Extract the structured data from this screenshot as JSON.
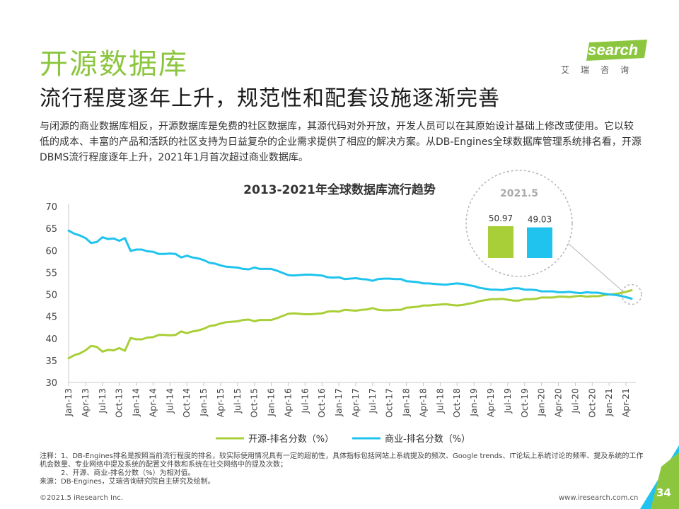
{
  "header": {
    "title": "开源数据库",
    "subtitle": "流行程度逐年上升，规范性和配套设施逐渐完善",
    "intro": "与闭源的商业数据库相反，开源数据库是免费的社区数据库，其源代码对外开放，开发人员可以在其原始设计基础上修改或使用。它以较低的成本、丰富的产品和活跃的社区支持为日益复杂的企业需求提供了相应的解决方案。从DB-Engines全球数据库管理系统排名看，开源DBMS流行程度逐年上升，2021年1月首次超过商业数据库。"
  },
  "logo": {
    "text": "iResearch",
    "subtext": "艾瑞咨询"
  },
  "colors": {
    "accent": "#8cc63f",
    "open_source": "#a9cf38",
    "commercial": "#1fc3ee"
  },
  "chart_data": {
    "type": "line",
    "title": "2013-2021年全球数据库流行趋势",
    "xlabel": "",
    "ylabel": "",
    "ylim": [
      30,
      70
    ],
    "yticks": [
      30,
      35,
      40,
      45,
      50,
      55,
      60,
      65,
      70
    ],
    "grid": false,
    "legend_position": "bottom",
    "x": [
      "Jan-13",
      "Feb-13",
      "Mar-13",
      "Apr-13",
      "May-13",
      "Jun-13",
      "Jul-13",
      "Aug-13",
      "Sep-13",
      "Oct-13",
      "Nov-13",
      "Dec-13",
      "Jan-14",
      "Feb-14",
      "Mar-14",
      "Apr-14",
      "May-14",
      "Jun-14",
      "Jul-14",
      "Aug-14",
      "Sep-14",
      "Oct-14",
      "Nov-14",
      "Dec-14",
      "Jan-15",
      "Feb-15",
      "Mar-15",
      "Apr-15",
      "May-15",
      "Jun-15",
      "Jul-15",
      "Aug-15",
      "Sep-15",
      "Oct-15",
      "Nov-15",
      "Dec-15",
      "Jan-16",
      "Feb-16",
      "Mar-16",
      "Apr-16",
      "May-16",
      "Jun-16",
      "Jul-16",
      "Aug-16",
      "Sep-16",
      "Oct-16",
      "Nov-16",
      "Dec-16",
      "Jan-17",
      "Feb-17",
      "Mar-17",
      "Apr-17",
      "May-17",
      "Jun-17",
      "Jul-17",
      "Aug-17",
      "Sep-17",
      "Oct-17",
      "Nov-17",
      "Dec-17",
      "Jan-18",
      "Feb-18",
      "Mar-18",
      "Apr-18",
      "May-18",
      "Jun-18",
      "Jul-18",
      "Aug-18",
      "Sep-18",
      "Oct-18",
      "Nov-18",
      "Dec-18",
      "Jan-19",
      "Feb-19",
      "Mar-19",
      "Apr-19",
      "May-19",
      "Jun-19",
      "Jul-19",
      "Aug-19",
      "Sep-19",
      "Oct-19",
      "Nov-19",
      "Dec-19",
      "Jan-20",
      "Feb-20",
      "Mar-20",
      "Apr-20",
      "May-20",
      "Jun-20",
      "Jul-20",
      "Aug-20",
      "Sep-20",
      "Oct-20",
      "Nov-20",
      "Dec-20",
      "Jan-21",
      "Feb-21",
      "Mar-21",
      "Apr-21",
      "May-21"
    ],
    "tick_labels": [
      "Jan-13",
      "Apr-13",
      "Jul-13",
      "Oct-13",
      "Jan-14",
      "Apr-14",
      "Jul-14",
      "Oct-14",
      "Jan-15",
      "Apr-15",
      "Jul-15",
      "Oct-15",
      "Jan-16",
      "Apr-16",
      "Jul-16",
      "Oct-16",
      "Jan-17",
      "Apr-17",
      "Jul-17",
      "Oct-17",
      "Jan-18",
      "Apr-18",
      "Jul-18",
      "Oct-18",
      "Jan-19",
      "Apr-19",
      "Jul-19",
      "Oct-19",
      "Jan-20",
      "Apr-20",
      "Jul-20",
      "Oct-20",
      "Jan-21",
      "Apr-21"
    ],
    "series": [
      {
        "name": "开源-排名分数（%）",
        "values": [
          35.5,
          36.2,
          36.6,
          37.3,
          38.3,
          38.1,
          37.0,
          37.4,
          37.3,
          37.8,
          37.2,
          40.1,
          39.8,
          39.8,
          40.2,
          40.3,
          40.8,
          40.8,
          40.7,
          40.8,
          41.6,
          41.2,
          41.6,
          41.8,
          42.2,
          42.8,
          43.0,
          43.4,
          43.7,
          43.8,
          43.9,
          44.2,
          44.3,
          43.9,
          44.2,
          44.2,
          44.2,
          44.6,
          45.1,
          45.6,
          45.7,
          45.6,
          45.5,
          45.5,
          45.6,
          45.7,
          46.1,
          46.2,
          46.1,
          46.5,
          46.4,
          46.3,
          46.5,
          46.6,
          46.9,
          46.5,
          46.4,
          46.4,
          46.5,
          46.5,
          47.0,
          47.1,
          47.2,
          47.5,
          47.5,
          47.6,
          47.7,
          47.8,
          47.6,
          47.5,
          47.6,
          47.9,
          48.1,
          48.5,
          48.7,
          48.9,
          48.9,
          49.0,
          48.8,
          48.6,
          48.6,
          48.9,
          48.9,
          49.0,
          49.3,
          49.3,
          49.3,
          49.5,
          49.5,
          49.4,
          49.6,
          49.7,
          49.5,
          49.6,
          49.6,
          49.8,
          50.0,
          50.1,
          50.3,
          50.6,
          50.97
        ]
      },
      {
        "name": "商业-排名分数（%）",
        "values": [
          64.5,
          63.8,
          63.4,
          62.8,
          61.7,
          61.9,
          63.0,
          62.6,
          62.7,
          62.2,
          62.8,
          59.9,
          60.2,
          60.2,
          59.8,
          59.7,
          59.2,
          59.2,
          59.3,
          59.2,
          58.4,
          58.8,
          58.4,
          58.2,
          57.8,
          57.2,
          57.0,
          56.6,
          56.3,
          56.2,
          56.1,
          55.8,
          55.7,
          56.1,
          55.8,
          55.8,
          55.8,
          55.4,
          54.9,
          54.4,
          54.3,
          54.4,
          54.5,
          54.5,
          54.4,
          54.3,
          53.9,
          53.8,
          53.9,
          53.5,
          53.6,
          53.7,
          53.5,
          53.4,
          53.1,
          53.5,
          53.6,
          53.6,
          53.5,
          53.5,
          53.0,
          52.9,
          52.8,
          52.5,
          52.5,
          52.4,
          52.3,
          52.2,
          52.4,
          52.5,
          52.4,
          52.1,
          51.9,
          51.5,
          51.3,
          51.1,
          51.1,
          51.0,
          51.2,
          51.4,
          51.4,
          51.1,
          51.1,
          51.0,
          50.7,
          50.7,
          50.7,
          50.5,
          50.5,
          50.6,
          50.4,
          50.3,
          50.5,
          50.4,
          50.4,
          50.2,
          50.0,
          49.9,
          49.7,
          49.4,
          49.03
        ]
      }
    ],
    "callout": {
      "label": "2021.5",
      "values": [
        {
          "series": "开源-排名分数（%）",
          "value": "50.97"
        },
        {
          "series": "商业-排名分数（%）",
          "value": "49.03"
        }
      ]
    }
  },
  "notes": [
    "注释：1、DB-Engines排名是按照当前流行程度的排名，较实际使用情况具有一定的超前性，具体指标包括网站上系统提及的频次、Google trends、IT论坛上系统讨论的频率、提及系统的工作机会数量、专业网络中提及系统的配置文件数和系统在社交网络中的提及次数；",
    "2、开源、商业-排名分数（%）为相对值。",
    "来源：DB-Engines，艾瑞咨询研究院自主研究及绘制。"
  ],
  "footer": {
    "copyright": "©2021.5 iResearch Inc.",
    "url": "www.iresearch.com.cn",
    "page": "34"
  }
}
